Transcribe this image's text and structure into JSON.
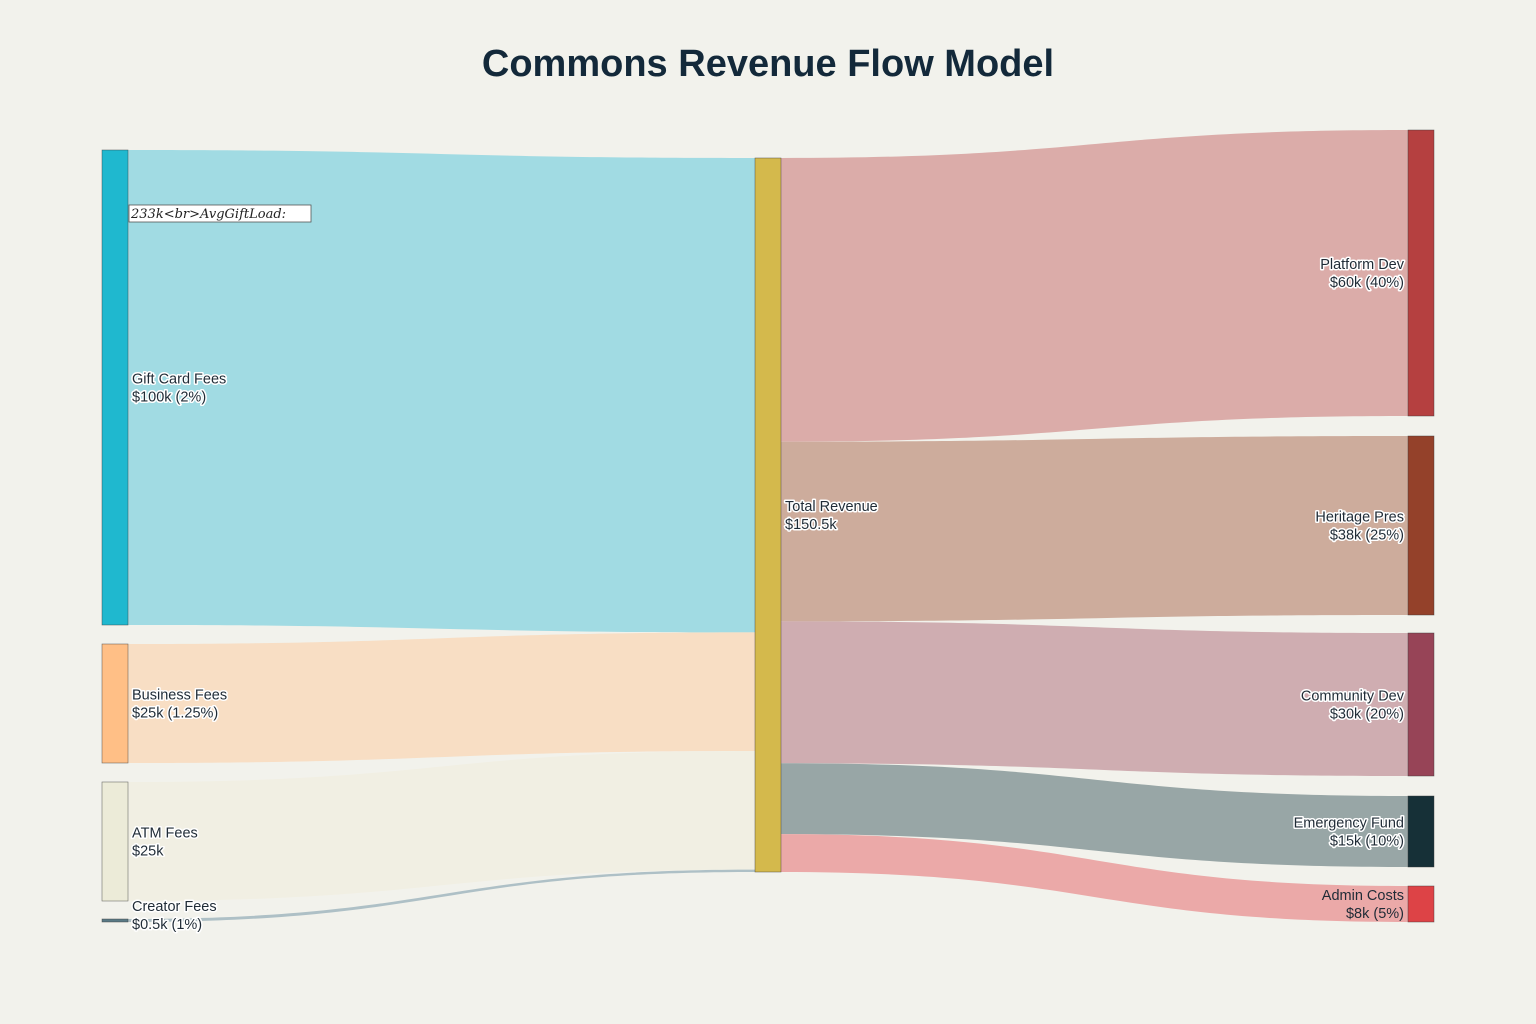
{
  "chart_data": {
    "type": "sankey",
    "title": "Commons Revenue Flow Model",
    "nodes": [
      {
        "id": "gift",
        "label": "Gift Card Fees",
        "sublabel": "$100k (2%)",
        "color": "#1fb8cf"
      },
      {
        "id": "business",
        "label": "Business Fees",
        "sublabel": "$25k (1.25%)",
        "color": "#ffbf86"
      },
      {
        "id": "atm",
        "label": "ATM Fees",
        "sublabel": "$25k",
        "color": "#ecebd8"
      },
      {
        "id": "creator",
        "label": "Creator Fees",
        "sublabel": "$0.5k (1%)",
        "color": "#5a7a85"
      },
      {
        "id": "total",
        "label": "Total Revenue",
        "sublabel": "$150.5k",
        "color": "#d4b94c"
      },
      {
        "id": "platform",
        "label": "Platform Dev",
        "sublabel": "$60k (40%)",
        "color": "#b54040"
      },
      {
        "id": "heritage",
        "label": "Heritage Pres",
        "sublabel": "$38k (25%)",
        "color": "#94412a"
      },
      {
        "id": "community",
        "label": "Community Dev",
        "sublabel": "$30k (20%)",
        "color": "#974457"
      },
      {
        "id": "emergency",
        "label": "Emergency Fund",
        "sublabel": "$15k (10%)",
        "color": "#163037"
      },
      {
        "id": "admin",
        "label": "Admin Costs",
        "sublabel": "$8k (5%)",
        "color": "#dd4346"
      }
    ],
    "links": [
      {
        "source": "gift",
        "target": "total",
        "value": 100,
        "color": "#a1dbe3"
      },
      {
        "source": "business",
        "target": "total",
        "value": 25,
        "color": "#f8dec4"
      },
      {
        "source": "atm",
        "target": "total",
        "value": 25,
        "color": "#f1efe3"
      },
      {
        "source": "creator",
        "target": "total",
        "value": 0.5,
        "color": "#aec0c6"
      },
      {
        "source": "total",
        "target": "platform",
        "value": 60,
        "color": "#dbaca9"
      },
      {
        "source": "total",
        "target": "heritage",
        "value": 38,
        "color": "#cdac9c"
      },
      {
        "source": "total",
        "target": "community",
        "value": 30,
        "color": "#cfadb1"
      },
      {
        "source": "total",
        "target": "emergency",
        "value": 15,
        "color": "#98a6a6"
      },
      {
        "source": "total",
        "target": "admin",
        "value": 8,
        "color": "#eba9a8"
      }
    ],
    "annotations": [
      {
        "text": "233k<br>AvgGiftLoad:",
        "anchor": "gift"
      }
    ]
  }
}
